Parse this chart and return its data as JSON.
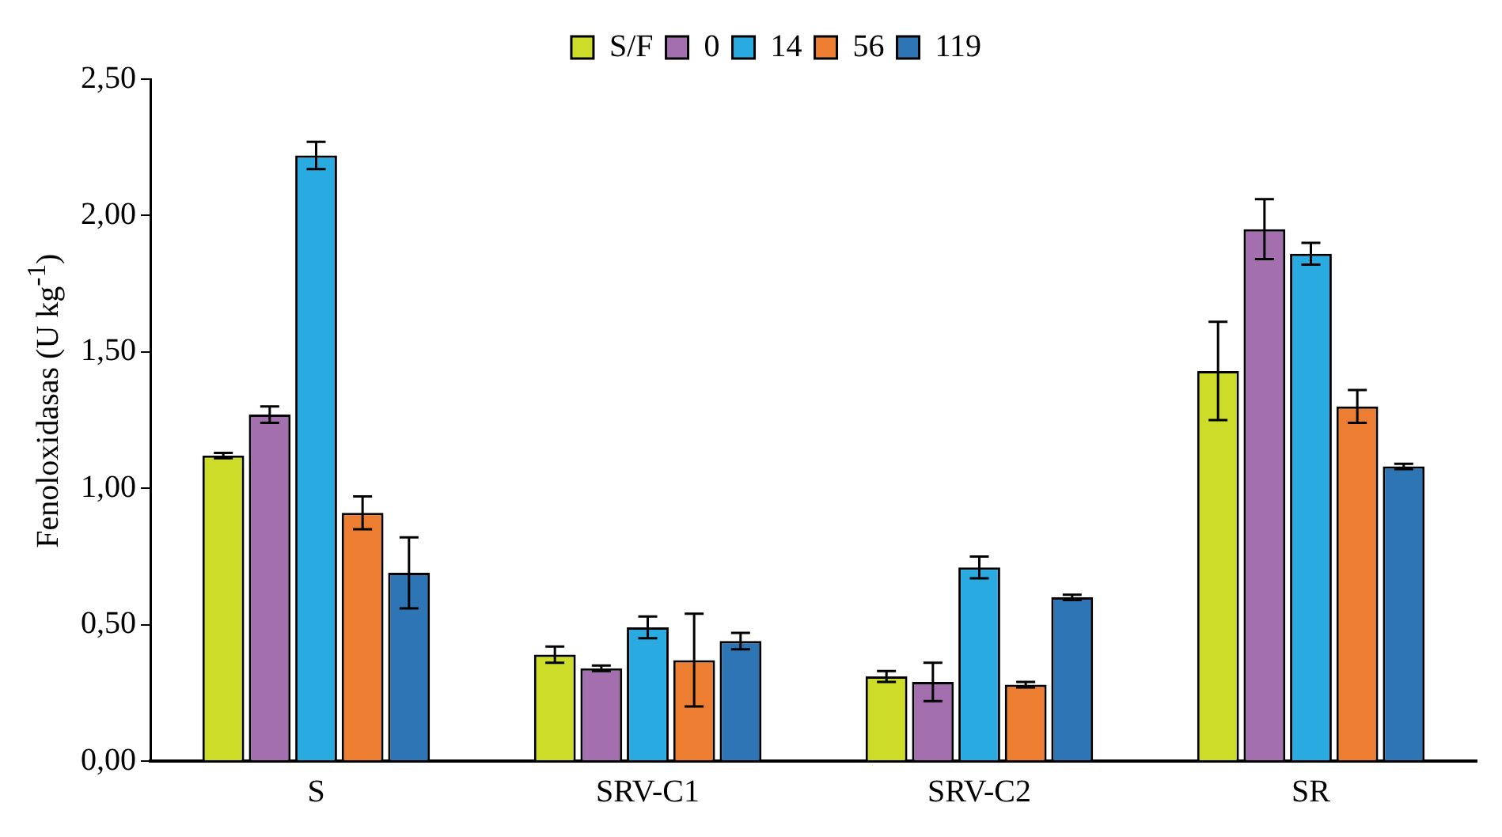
{
  "chart_data": {
    "type": "bar",
    "ylabel": "Fenoloxidasas (U kg$^{-1}$)",
    "categories": [
      "S",
      "SRV-C1",
      "SRV-C2",
      "SR"
    ],
    "series": [
      {
        "name": "S/F",
        "color": "#cddc29",
        "values": [
          1.12,
          0.39,
          0.31,
          1.43
        ],
        "errors": [
          0.01,
          0.03,
          0.02,
          0.18
        ]
      },
      {
        "name": "0",
        "color": "#a46fae",
        "values": [
          1.27,
          0.34,
          0.29,
          1.95
        ],
        "errors": [
          0.03,
          0.01,
          0.07,
          0.11
        ]
      },
      {
        "name": "14",
        "color": "#29abe2",
        "values": [
          2.22,
          0.49,
          0.71,
          1.86
        ],
        "errors": [
          0.05,
          0.04,
          0.04,
          0.04
        ]
      },
      {
        "name": "56",
        "color": "#ed7d31",
        "values": [
          0.91,
          0.37,
          0.28,
          1.3
        ],
        "errors": [
          0.06,
          0.17,
          0.01,
          0.06
        ]
      },
      {
        "name": "119",
        "color": "#2e75b6",
        "values": [
          0.69,
          0.44,
          0.6,
          1.08
        ],
        "errors": [
          0.13,
          0.03,
          0.01,
          0.01
        ]
      }
    ],
    "ylim": [
      0,
      2.5
    ],
    "yticks": [
      {
        "value": 0,
        "label": "0,00"
      },
      {
        "value": 0.5,
        "label": "0,50"
      },
      {
        "value": 1,
        "label": "1,00"
      },
      {
        "value": 1.5,
        "label": "1,50"
      },
      {
        "value": 2,
        "label": "2,00"
      },
      {
        "value": 2.5,
        "label": "2,50"
      }
    ],
    "grid": false,
    "legend": "top"
  }
}
